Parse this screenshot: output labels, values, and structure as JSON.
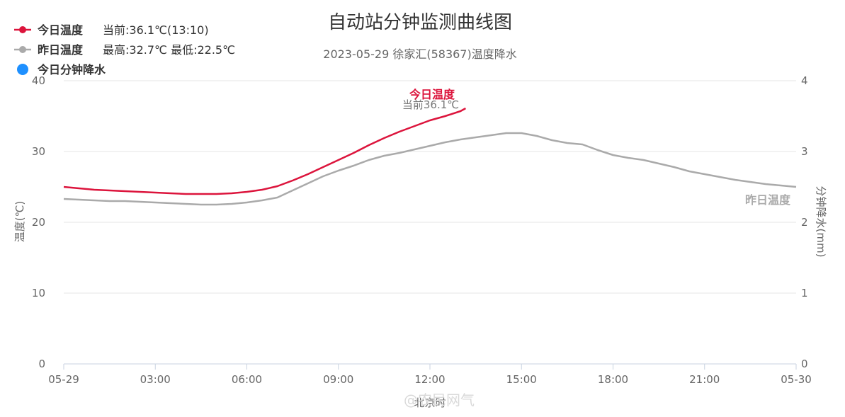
{
  "chart_data": {
    "type": "line",
    "title": "自动站分钟监测曲线图",
    "subtitle": "2023-05-29 徐家汇(58367)温度降水",
    "xlabel": "北京时",
    "ylabel": "温度(℃)",
    "y2label": "分钟降水(mm)",
    "x_ticks": [
      "05-29",
      "03:00",
      "06:00",
      "09:00",
      "12:00",
      "15:00",
      "18:00",
      "21:00",
      "05-30"
    ],
    "xlim_hours": [
      0,
      24
    ],
    "ylim": [
      0,
      40
    ],
    "y_ticks": [
      "0",
      "10",
      "20",
      "30",
      "40"
    ],
    "y2lim": [
      0,
      4
    ],
    "y2_ticks": [
      "0",
      "1",
      "2",
      "3",
      "4"
    ],
    "grid": true,
    "legend_position": "top-left",
    "legend": [
      {
        "name": "今日温度",
        "note": "当前:36.1℃(13:10)",
        "marker": "line-dot",
        "color": "#dc143c"
      },
      {
        "name": "昨日温度",
        "note": "最高:32.7℃ 最低:22.5℃",
        "marker": "line-dot",
        "color": "#aaaaaa"
      },
      {
        "name": "今日分钟降水",
        "note": "",
        "marker": "dot",
        "color": "#1e90ff"
      }
    ],
    "series": [
      {
        "name": "今日温度",
        "color": "#dc143c",
        "end_label": "今日温度",
        "end_note": "当前36.1℃",
        "x": [
          0,
          0.5,
          1,
          1.5,
          2,
          2.5,
          3,
          3.5,
          4,
          4.5,
          5,
          5.5,
          6,
          6.5,
          7,
          7.5,
          8,
          8.5,
          9,
          9.5,
          10,
          10.5,
          11,
          11.5,
          12,
          12.5,
          13,
          13.17
        ],
        "y": [
          25.0,
          24.8,
          24.6,
          24.5,
          24.4,
          24.3,
          24.2,
          24.1,
          24.0,
          24.0,
          24.0,
          24.1,
          24.3,
          24.6,
          25.1,
          25.9,
          26.8,
          27.8,
          28.8,
          29.8,
          30.9,
          31.9,
          32.8,
          33.6,
          34.4,
          35.0,
          35.7,
          36.1
        ]
      },
      {
        "name": "昨日温度",
        "color": "#aaaaaa",
        "end_label": "昨日温度",
        "x": [
          0,
          0.5,
          1,
          1.5,
          2,
          2.5,
          3,
          3.5,
          4,
          4.5,
          5,
          5.5,
          6,
          6.5,
          7,
          7.5,
          8,
          8.5,
          9,
          9.5,
          10,
          10.5,
          11,
          11.5,
          12,
          12.5,
          13,
          13.5,
          14,
          14.5,
          15,
          15.5,
          16,
          16.5,
          17,
          17.5,
          18,
          18.5,
          19,
          19.5,
          20,
          20.5,
          21,
          21.5,
          22,
          22.5,
          23,
          23.5,
          24
        ],
        "y": [
          23.3,
          23.2,
          23.1,
          23.0,
          23.0,
          22.9,
          22.8,
          22.7,
          22.6,
          22.5,
          22.5,
          22.6,
          22.8,
          23.1,
          23.5,
          24.5,
          25.5,
          26.5,
          27.3,
          28.0,
          28.8,
          29.4,
          29.8,
          30.3,
          30.8,
          31.3,
          31.7,
          32.0,
          32.3,
          32.6,
          32.6,
          32.2,
          31.6,
          31.2,
          31.0,
          30.2,
          29.5,
          29.1,
          28.8,
          28.3,
          27.8,
          27.2,
          26.8,
          26.4,
          26.0,
          25.7,
          25.4,
          25.2,
          25.0
        ]
      },
      {
        "name": "今日分钟降水",
        "color": "#1e90ff",
        "axis": "right",
        "x": [],
        "y": []
      }
    ],
    "watermark": "@农民网气"
  }
}
